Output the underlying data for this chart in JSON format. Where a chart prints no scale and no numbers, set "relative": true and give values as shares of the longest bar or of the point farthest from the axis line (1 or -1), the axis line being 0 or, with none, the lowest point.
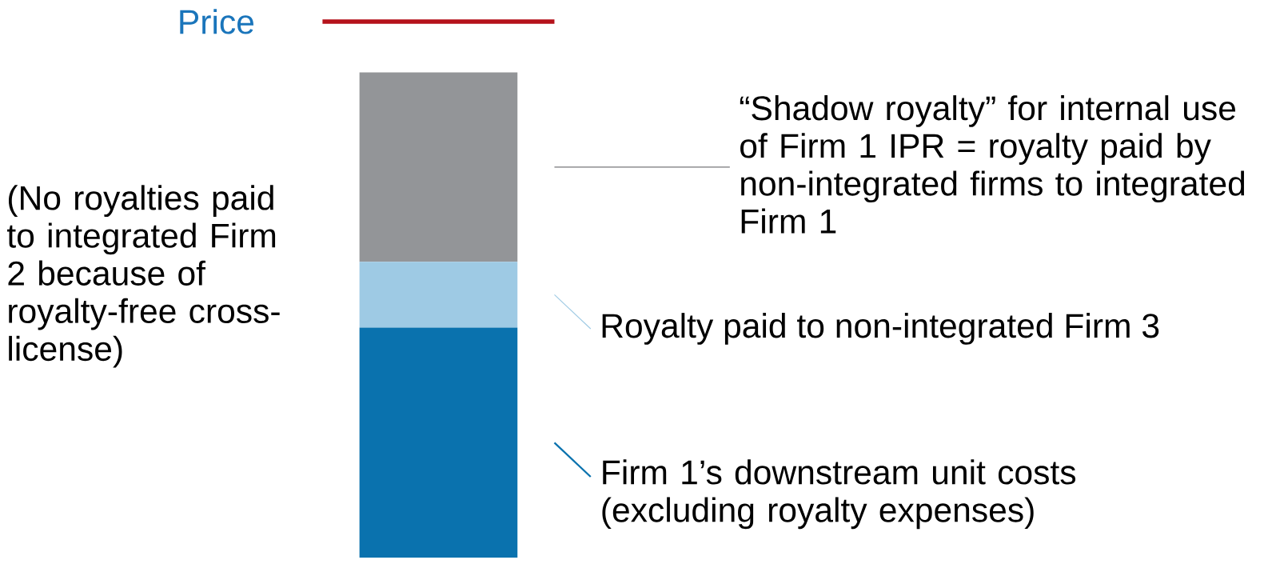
{
  "chart_data": {
    "type": "bar",
    "stacked": true,
    "relative": true,
    "legend": "right",
    "categories": [
      null
    ],
    "series": [
      {
        "name": "Firm 1’s downstream unit costs (excluding royalty expenses)",
        "color": "#0a72ae",
        "values": [
          0.474
        ]
      },
      {
        "name": "Royalty paid to non-integrated Firm 3",
        "color": "#9ecae4",
        "values": [
          0.136
        ]
      },
      {
        "name": "“Shadow royalty” for internal use of Firm 1 IPR = royalty paid by non-integrated firms to integrated Firm 1",
        "color": "#939598",
        "values": [
          0.39
        ]
      }
    ],
    "ref_lines": [
      {
        "axis": "y",
        "value": 1.105,
        "label": "Price",
        "color": "#b5121b"
      }
    ],
    "annotations": [
      "(No royalties paid to integrated Firm 2 because of royalty-free cross-license)"
    ]
  }
}
